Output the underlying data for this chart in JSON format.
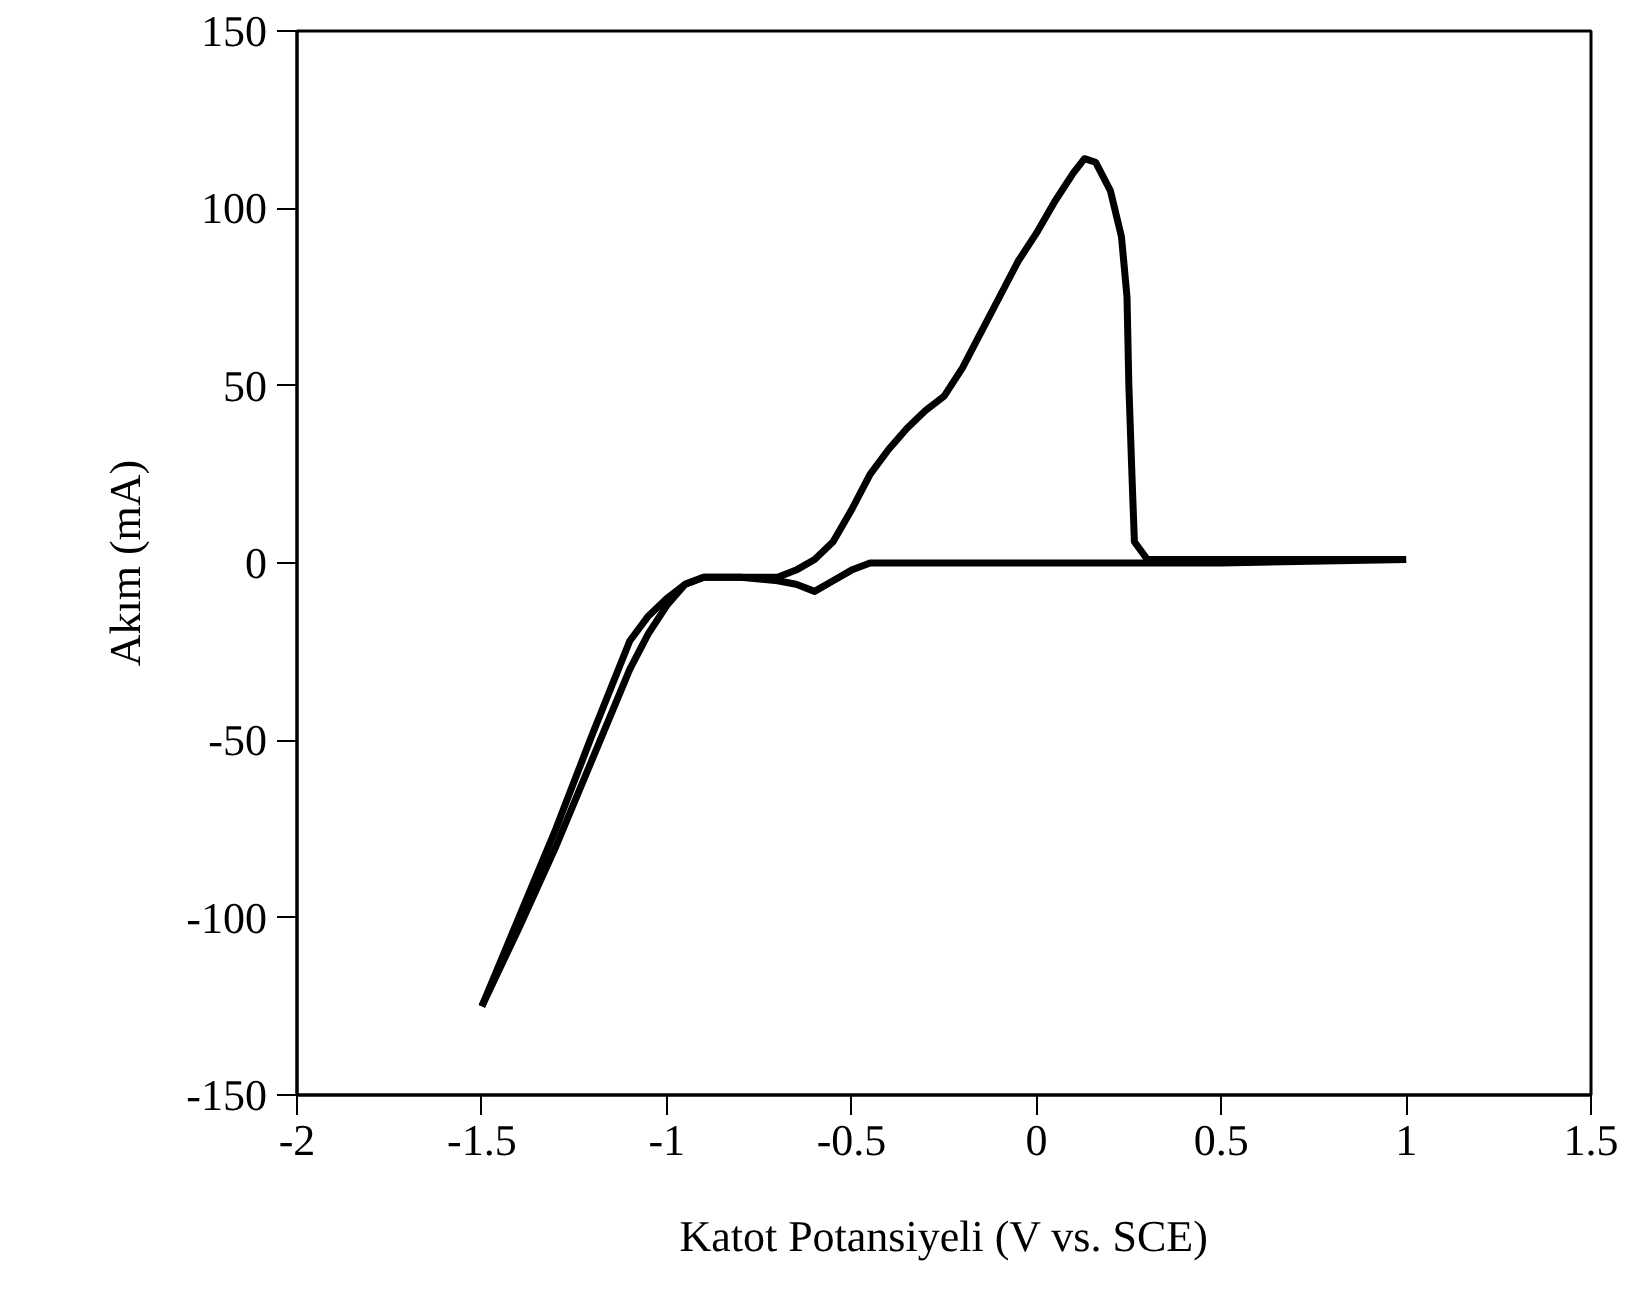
{
  "chart_data": {
    "type": "line",
    "xlabel": "Katot Potansiyeli (V vs. SCE)",
    "ylabel": "Akım (mA)",
    "xlim": [
      -2,
      1.5
    ],
    "xticks": [
      -2,
      -1.5,
      -1,
      -0.5,
      0,
      0.5,
      1,
      1.5
    ],
    "ylim": [
      -150,
      150
    ],
    "yticks": [
      -150,
      -100,
      -50,
      0,
      50,
      100,
      150
    ],
    "grid": false,
    "marker": "none",
    "line_style": "solid",
    "series": [
      {
        "color": "#000000",
        "x": [
          -1.5,
          -1.4,
          -1.3,
          -1.2,
          -1.1,
          -1.05,
          -1.0,
          -0.95,
          -0.9,
          -0.8,
          -0.7,
          -0.65,
          -0.6,
          -0.55,
          -0.5,
          -0.45,
          -0.4,
          -0.35,
          -0.3,
          -0.25,
          -0.2,
          -0.15,
          -0.1,
          -0.05,
          0,
          0.05,
          0.1,
          0.13,
          0.16,
          0.2,
          0.23,
          0.245,
          0.25,
          0.26,
          0.265,
          0.3,
          0.5,
          1.0
        ],
        "values": [
          -125,
          -100,
          -75,
          -48,
          -22,
          -15,
          -10,
          -6,
          -4,
          -4,
          -4,
          -2,
          1,
          6,
          15,
          25,
          32,
          38,
          43,
          47,
          55,
          65,
          75,
          85,
          93,
          102,
          110,
          114,
          113,
          105,
          92,
          75,
          50,
          20,
          6,
          1,
          1,
          1
        ]
      },
      {
        "color": "#000000",
        "x": [
          -1.5,
          -1.4,
          -1.3,
          -1.2,
          -1.1,
          -1.05,
          -1.0,
          -0.95,
          -0.9,
          -0.8,
          -0.7,
          -0.65,
          -0.6,
          -0.55,
          -0.5,
          -0.45,
          0,
          0.5,
          1.0
        ],
        "values": [
          -125,
          -103,
          -80,
          -55,
          -30,
          -20,
          -12,
          -6,
          -4,
          -4,
          -5,
          -6,
          -8,
          -5,
          -2,
          0,
          0,
          0,
          1
        ]
      }
    ]
  }
}
